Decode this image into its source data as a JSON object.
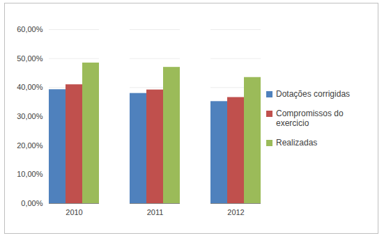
{
  "chart_data": {
    "type": "bar",
    "categories": [
      "2010",
      "2011",
      "2012"
    ],
    "series": [
      {
        "name": "Dotações corrigidas",
        "color": "#4f81bd",
        "values": [
          39.3,
          38.0,
          35.2
        ]
      },
      {
        "name": "Compromissos do exercicio",
        "color": "#c0504d",
        "values": [
          41.0,
          39.2,
          36.6
        ]
      },
      {
        "name": "Realizadas",
        "color": "#9bbb59",
        "values": [
          48.5,
          47.0,
          43.5
        ]
      }
    ],
    "ylim": [
      0,
      60
    ],
    "yticks": [
      {
        "value": 0,
        "label": "0,00%"
      },
      {
        "value": 10,
        "label": "10,00%"
      },
      {
        "value": 20,
        "label": "20,00%"
      },
      {
        "value": 30,
        "label": "30,00%"
      },
      {
        "value": 40,
        "label": "40,00%"
      },
      {
        "value": 50,
        "label": "50,00%"
      },
      {
        "value": 60,
        "label": "60,00%"
      }
    ],
    "grid": true,
    "legend": "right"
  }
}
